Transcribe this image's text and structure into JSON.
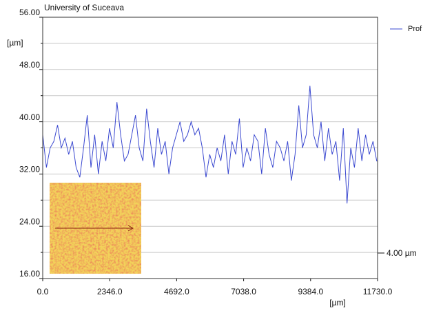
{
  "chart_data": {
    "type": "line",
    "title": "University of Suceava",
    "ylabel": "[µm]",
    "xlabel": "[µm]",
    "scale_label": "4.00 µm",
    "xlim": [
      0,
      11730
    ],
    "ylim": [
      16,
      56
    ],
    "xticks": [
      {
        "value": 0,
        "label": "0.0"
      },
      {
        "value": 2346,
        "label": "2346.0"
      },
      {
        "value": 4692,
        "label": "4692.0"
      },
      {
        "value": 7038,
        "label": "7038.0"
      },
      {
        "value": 9384,
        "label": "9384.0"
      },
      {
        "value": 11730,
        "label": "11730.0"
      }
    ],
    "yticks": [
      {
        "value": 16,
        "label": "16.00"
      },
      {
        "value": 24,
        "label": "24.00"
      },
      {
        "value": 32,
        "label": "32.00"
      },
      {
        "value": 40,
        "label": "40.00"
      },
      {
        "value": 48,
        "label": "48.00"
      },
      {
        "value": 56,
        "label": "56.00"
      }
    ],
    "minor_yticks": [
      20,
      28,
      36,
      44,
      52
    ],
    "grid": true,
    "legend": "top-right",
    "x": [
      0,
      130,
      260,
      390,
      520,
      650,
      780,
      910,
      1040,
      1170,
      1300,
      1430,
      1560,
      1690,
      1820,
      1950,
      2080,
      2210,
      2340,
      2470,
      2600,
      2730,
      2860,
      2990,
      3120,
      3250,
      3380,
      3510,
      3640,
      3770,
      3900,
      4030,
      4160,
      4290,
      4420,
      4550,
      4680,
      4810,
      4940,
      5070,
      5200,
      5330,
      5460,
      5590,
      5720,
      5850,
      5980,
      6110,
      6240,
      6370,
      6500,
      6630,
      6760,
      6890,
      7020,
      7150,
      7280,
      7410,
      7540,
      7670,
      7800,
      7930,
      8060,
      8190,
      8320,
      8450,
      8580,
      8710,
      8840,
      8970,
      9100,
      9230,
      9360,
      9490,
      9620,
      9750,
      9880,
      10010,
      10140,
      10270,
      10400,
      10530,
      10660,
      10790,
      10920,
      11050,
      11180,
      11310,
      11440,
      11570,
      11700,
      11730
    ],
    "series": [
      {
        "name": "Prof",
        "color": "#3a48d0",
        "values": [
          38,
          33,
          36,
          37,
          39.5,
          36,
          37.5,
          35,
          37,
          33,
          31.5,
          36,
          41,
          33,
          38,
          32,
          37,
          34,
          39,
          36,
          43,
          38,
          34,
          35,
          38,
          41,
          36,
          34,
          42,
          37,
          33,
          39,
          35,
          37,
          32,
          36,
          38,
          40,
          37,
          38,
          40,
          38,
          39,
          36,
          31.5,
          35,
          33,
          36,
          34,
          38,
          32,
          37,
          35,
          40.5,
          33,
          36,
          34,
          38,
          37,
          32,
          39,
          35,
          33,
          37,
          36,
          34,
          37,
          31,
          35,
          42.5,
          36,
          38,
          45.5,
          38,
          36,
          40,
          34,
          39,
          35,
          37,
          31,
          39,
          27.5,
          36,
          33,
          39,
          34,
          38,
          35,
          37,
          34,
          34
        ]
      }
    ]
  }
}
